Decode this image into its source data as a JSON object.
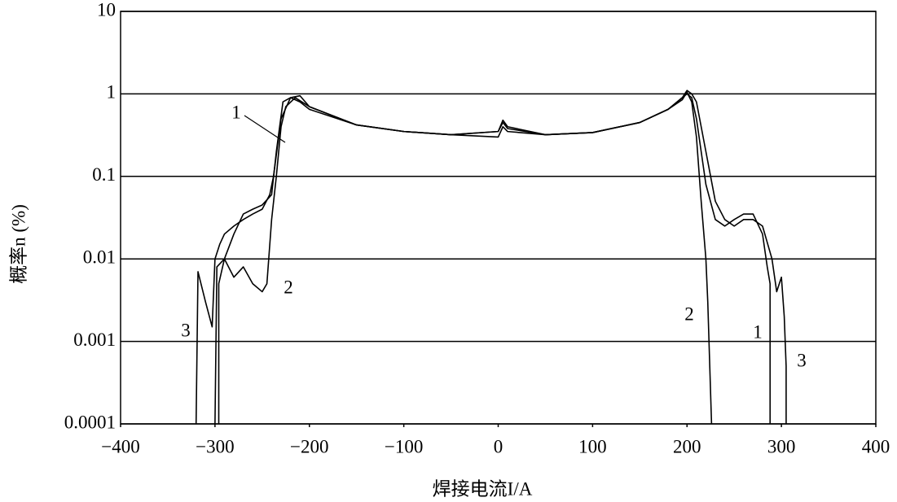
{
  "chart_data": {
    "type": "line",
    "xlabel": "焊接电流I/A",
    "ylabel": "概率n (%)",
    "xlim": [
      -400,
      400
    ],
    "xticks": [
      {
        "value": -400,
        "label": "−400"
      },
      {
        "value": -300,
        "label": "−300"
      },
      {
        "value": -200,
        "label": "−200"
      },
      {
        "value": -100,
        "label": "−100"
      },
      0,
      100,
      200,
      300,
      400
    ],
    "ylim": [
      0.0001,
      10
    ],
    "yticks": [
      0.0001,
      0.001,
      0.01,
      0.1,
      1,
      10
    ],
    "yscale": "log",
    "grid": true,
    "series": [
      {
        "name": "1",
        "color": "#000000",
        "x": [
          -296,
          -296,
          -290,
          -280,
          -270,
          -260,
          -250,
          -240,
          -235,
          -228,
          -220,
          -210,
          -200,
          -150,
          -100,
          -50,
          0,
          5,
          10,
          50,
          100,
          150,
          180,
          195,
          200,
          205,
          210,
          215,
          220,
          230,
          240,
          250,
          260,
          270,
          280,
          285,
          288,
          288
        ],
        "values": [
          0.0001,
          0.005,
          0.01,
          0.02,
          0.035,
          0.04,
          0.045,
          0.06,
          0.2,
          0.8,
          0.9,
          0.8,
          0.65,
          0.42,
          0.35,
          0.32,
          0.35,
          0.45,
          0.38,
          0.32,
          0.34,
          0.45,
          0.65,
          0.9,
          1.0,
          0.9,
          0.5,
          0.2,
          0.08,
          0.03,
          0.025,
          0.03,
          0.035,
          0.035,
          0.02,
          0.008,
          0.005,
          0.0001
        ]
      },
      {
        "name": "2",
        "color": "#000000",
        "x": [
          -300,
          -298,
          -290,
          -280,
          -270,
          -260,
          -250,
          -245,
          -240,
          -235,
          -230,
          -225,
          -215,
          -200,
          -150,
          -100,
          -50,
          0,
          5,
          10,
          50,
          100,
          150,
          180,
          195,
          200,
          205,
          210,
          215,
          220,
          222,
          226
        ],
        "values": [
          0.0001,
          0.008,
          0.01,
          0.006,
          0.008,
          0.005,
          0.004,
          0.005,
          0.03,
          0.1,
          0.4,
          0.7,
          0.9,
          0.7,
          0.42,
          0.35,
          0.32,
          0.3,
          0.4,
          0.35,
          0.32,
          0.34,
          0.45,
          0.65,
          0.85,
          1.05,
          0.8,
          0.3,
          0.05,
          0.01,
          0.003,
          0.0001
        ]
      },
      {
        "name": "3",
        "color": "#000000",
        "x": [
          -320,
          -318,
          -310,
          -303,
          -300,
          -295,
          -290,
          -280,
          -270,
          -260,
          -250,
          -242,
          -238,
          -230,
          -220,
          -210,
          -200,
          -150,
          -100,
          -50,
          0,
          5,
          10,
          50,
          100,
          150,
          180,
          195,
          200,
          205,
          210,
          220,
          230,
          240,
          250,
          260,
          270,
          280,
          290,
          295,
          300,
          303,
          305,
          305
        ],
        "values": [
          0.0001,
          0.007,
          0.003,
          0.0015,
          0.01,
          0.015,
          0.02,
          0.025,
          0.03,
          0.035,
          0.04,
          0.06,
          0.1,
          0.5,
          0.9,
          0.95,
          0.7,
          0.42,
          0.35,
          0.32,
          0.35,
          0.48,
          0.4,
          0.32,
          0.34,
          0.45,
          0.65,
          0.9,
          1.1,
          1.0,
          0.8,
          0.2,
          0.05,
          0.03,
          0.025,
          0.03,
          0.03,
          0.025,
          0.01,
          0.004,
          0.006,
          0.002,
          0.0005,
          0.0001
        ]
      }
    ]
  }
}
